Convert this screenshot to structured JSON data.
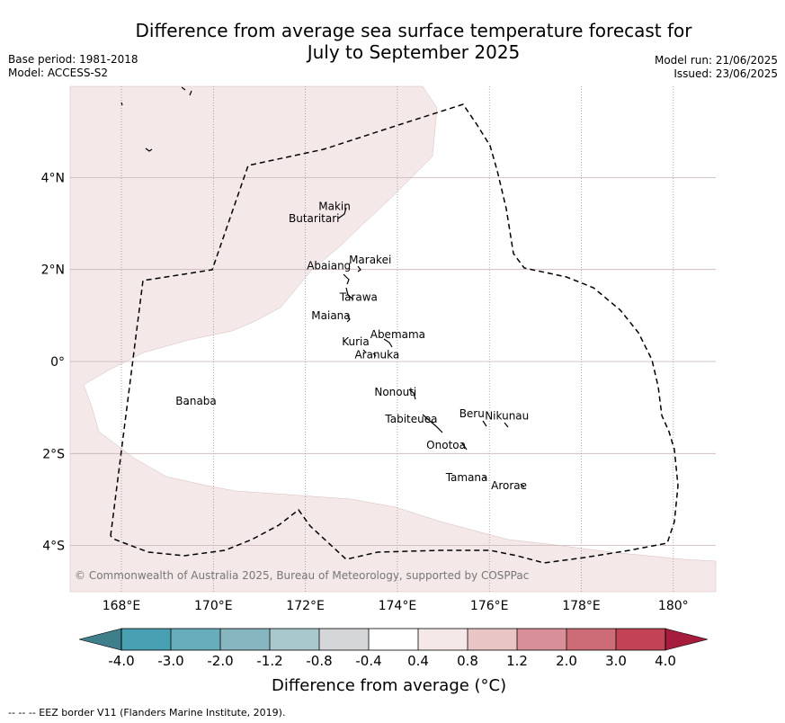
{
  "title": {
    "line1": "Difference from average sea surface temperature forecast for",
    "line2": "July to September 2025"
  },
  "meta_left": {
    "base_period": "Base period: 1981-2018",
    "model": "Model: ACCESS-S2"
  },
  "meta_right": {
    "model_run": "Model run: 21/06/2025",
    "issued": "Issued: 23/06/2025"
  },
  "copyright": "© Commonwealth of Australia 2025, Bureau of Meteorology, supported by COSPPac",
  "axes": {
    "lon_labels": [
      "168°E",
      "170°E",
      "172°E",
      "174°E",
      "176°E",
      "178°E",
      "180°"
    ],
    "lat_labels": [
      "4°N",
      "2°N",
      "0°",
      "2°S",
      "4°S"
    ]
  },
  "islands": [
    {
      "name": "Makin",
      "lon": 172.99,
      "lat": 3.18
    },
    {
      "name": "Butaritari",
      "lon": 172.79,
      "lat": 3.07
    },
    {
      "name": "Marakei",
      "lon": 173.28,
      "lat": 2.01
    },
    {
      "name": "Abaiang",
      "lon": 172.97,
      "lat": 1.85
    },
    {
      "name": "Tarawa",
      "lon": 172.98,
      "lat": 1.42
    },
    {
      "name": "Maiana",
      "lon": 173.03,
      "lat": 0.92
    },
    {
      "name": "Abemama",
      "lon": 173.86,
      "lat": 0.45
    },
    {
      "name": "Kuria",
      "lon": 173.42,
      "lat": 0.23
    },
    {
      "name": "Aranuka",
      "lon": 173.62,
      "lat": 0.17
    },
    {
      "name": "Banaba",
      "lon": 169.53,
      "lat": -0.86
    },
    {
      "name": "Nonouti",
      "lon": 174.4,
      "lat": -0.66
    },
    {
      "name": "Tabiteuea",
      "lon": 174.85,
      "lat": -1.35
    },
    {
      "name": "Beru",
      "lon": 175.99,
      "lat": -1.33
    },
    {
      "name": "Nikunau",
      "lon": 176.45,
      "lat": -1.36
    },
    {
      "name": "Onotoa",
      "lon": 175.55,
      "lat": -1.82
    },
    {
      "name": "Tamana",
      "lon": 175.99,
      "lat": -2.5
    },
    {
      "name": "Arorae",
      "lon": 176.82,
      "lat": -2.64
    }
  ],
  "colorbar": {
    "title": "Difference from average ($^\\circ$C)",
    "title_display": "Difference from average (°C)",
    "ticks": [
      "-4.0",
      "-3.0",
      "-2.0",
      "-1.2",
      "-0.8",
      "-0.4",
      "0.4",
      "0.8",
      "1.2",
      "2.0",
      "3.0",
      "4.0"
    ],
    "colors": [
      "#3f7f8c",
      "#48a0b2",
      "#67adbb",
      "#87b6c1",
      "#a9c8cd",
      "#d4d6d8",
      "#ffffff",
      "#f5e8e8",
      "#e9c6c5",
      "#d98f97",
      "#cd6b76",
      "#c14355",
      "#a61c3c"
    ]
  },
  "legend_footer": "--  --  -- EEZ border V11 (Flanders Marine Institute, 2019).",
  "fill_region_color": "#f5e8e8"
}
